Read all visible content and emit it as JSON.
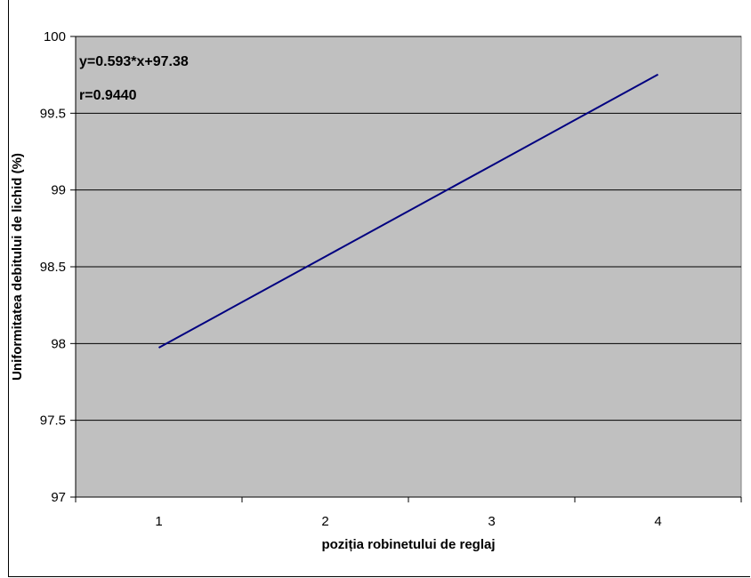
{
  "chart_data": {
    "type": "line",
    "x": [
      1,
      2,
      3,
      4
    ],
    "series": [
      {
        "values": [
          97.973,
          98.566,
          99.159,
          99.752
        ]
      }
    ],
    "xlabel": "poziția robinetului de reglaj",
    "ylabel": "Uniformitatea debitului de lichid (%)",
    "x_tick_labels": [
      "1",
      "2",
      "3",
      "4"
    ],
    "y_ticks": [
      97,
      97.5,
      98,
      98.5,
      99,
      99.5,
      100
    ],
    "y_tick_labels": [
      "97",
      "97.5",
      "98",
      "98.5",
      "99",
      "99.5",
      "100"
    ],
    "ylim": [
      97,
      100
    ],
    "grid": "horizontal",
    "annotations": [
      "y=0.593*x+97.38",
      "r=0.9440"
    ],
    "colors": {
      "plot_background": "#c0c0c0",
      "line": "#000080",
      "grid": "#000000"
    }
  }
}
